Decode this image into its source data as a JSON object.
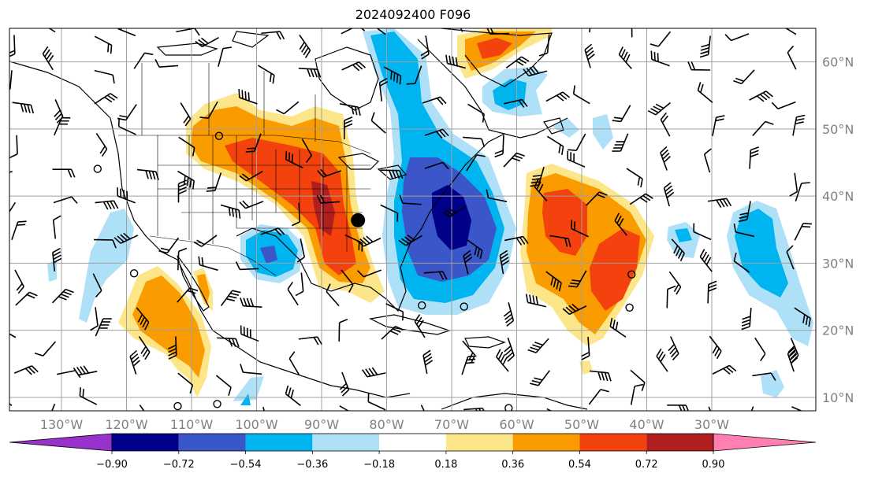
{
  "title": "2024092400 F096",
  "map": {
    "lon_range": [
      -138,
      -14
    ],
    "lat_range": [
      8,
      65
    ],
    "lat_labels": [
      "60°N",
      "50°N",
      "40°N",
      "30°N",
      "20°N",
      "10°N"
    ],
    "lat_values": [
      60,
      50,
      40,
      30,
      20,
      10
    ],
    "lon_labels": [
      "130°W",
      "120°W",
      "110°W",
      "100°W",
      "90°W",
      "80°W",
      "70°W",
      "60°W",
      "50°W",
      "40°W",
      "30°W"
    ],
    "lon_values": [
      -130,
      -120,
      -110,
      -100,
      -90,
      -80,
      -70,
      -60,
      -50,
      -40,
      -30
    ],
    "marker": {
      "lon": -84.4,
      "lat": 36.4
    }
  },
  "colorbar": {
    "ticks": [
      "−0.90",
      "−0.72",
      "−0.54",
      "−0.36",
      "−0.18",
      "0.18",
      "0.36",
      "0.54",
      "0.72",
      "0.90"
    ],
    "colors": [
      "#9932cc",
      "#00008b",
      "#3a56c8",
      "#00b4f0",
      "#aee0f8",
      "#ffffff",
      "#fde68a",
      "#fa9c00",
      "#f4420e",
      "#b01e1e",
      "#ff80b0"
    ]
  },
  "legend_colors": {
    "neg_extreme": "#00008b",
    "neg_strong": "#3a56c8",
    "neg_mid": "#00b4f0",
    "neg_weak": "#aee0f8",
    "pos_weak": "#fde68a",
    "pos_mid": "#fa9c00",
    "pos_strong": "#f4420e",
    "pos_extreme": "#b01e1e"
  }
}
